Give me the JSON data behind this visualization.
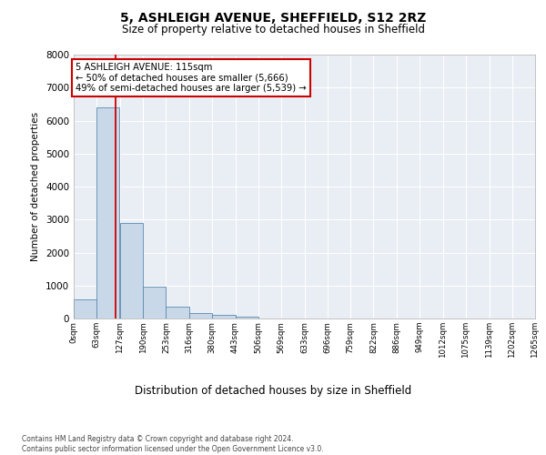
{
  "title_line1": "5, ASHLEIGH AVENUE, SHEFFIELD, S12 2RZ",
  "title_line2": "Size of property relative to detached houses in Sheffield",
  "xlabel": "Distribution of detached houses by size in Sheffield",
  "ylabel": "Number of detached properties",
  "bin_edges": [
    0,
    63,
    127,
    190,
    253,
    316,
    380,
    443,
    506,
    569,
    633,
    696,
    759,
    822,
    886,
    949,
    1012,
    1075,
    1139,
    1202,
    1265
  ],
  "bin_labels": [
    "0sqm",
    "63sqm",
    "127sqm",
    "190sqm",
    "253sqm",
    "316sqm",
    "380sqm",
    "443sqm",
    "506sqm",
    "569sqm",
    "633sqm",
    "696sqm",
    "759sqm",
    "822sqm",
    "886sqm",
    "949sqm",
    "1012sqm",
    "1075sqm",
    "1139sqm",
    "1202sqm",
    "1265sqm"
  ],
  "bar_heights": [
    580,
    6400,
    2900,
    975,
    350,
    155,
    100,
    55,
    0,
    0,
    0,
    0,
    0,
    0,
    0,
    0,
    0,
    0,
    0,
    0
  ],
  "bar_color": "#c8d8e8",
  "bar_edge_color": "#5a8ab0",
  "vertical_line_x": 115,
  "vertical_line_color": "#cc0000",
  "annotation_text": "5 ASHLEIGH AVENUE: 115sqm\n← 50% of detached houses are smaller (5,666)\n49% of semi-detached houses are larger (5,539) →",
  "annotation_box_color": "#cc0000",
  "ylim": [
    0,
    8000
  ],
  "yticks": [
    0,
    1000,
    2000,
    3000,
    4000,
    5000,
    6000,
    7000,
    8000
  ],
  "background_color": "#e8eef4",
  "grid_color": "#ffffff",
  "footer_line1": "Contains HM Land Registry data © Crown copyright and database right 2024.",
  "footer_line2": "Contains public sector information licensed under the Open Government Licence v3.0."
}
